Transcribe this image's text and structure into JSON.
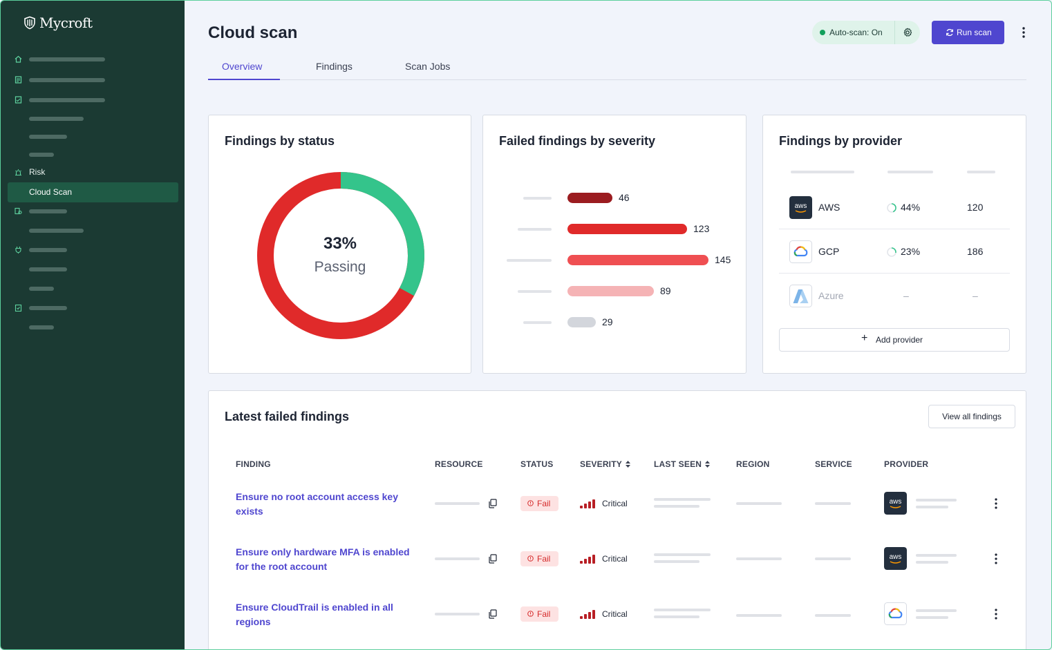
{
  "app": {
    "brand": "Mycroft",
    "page_title": "Cloud scan"
  },
  "sidebar": {
    "risk_label": "Risk",
    "active_item": "Cloud Scan"
  },
  "header": {
    "autoscan_label": "Auto-scan: On",
    "run_scan_label": "Run scan"
  },
  "tabs": [
    "Overview",
    "Findings",
    "Scan Jobs"
  ],
  "active_tab": "Overview",
  "status_card": {
    "title": "Findings by status",
    "passing_percent": 33,
    "percent_label": "33%",
    "caption": "Passing",
    "colors": {
      "pass": "#34c48b",
      "fail": "#e02a2a"
    }
  },
  "severity_card": {
    "title": "Failed findings by severity",
    "values": [
      "46",
      "123",
      "145",
      "89",
      "29"
    ],
    "colors": [
      "#9b1c20",
      "#e02a2a",
      "#ef4f52",
      "#f5b3b5",
      "#d3d6dc"
    ]
  },
  "provider_card": {
    "title": "Findings by provider",
    "rows": [
      {
        "name": "AWS",
        "percent": "44%",
        "count": "120",
        "icon": "aws-logo"
      },
      {
        "name": "GCP",
        "percent": "23%",
        "count": "186",
        "icon": "gcp-logo"
      },
      {
        "name": "Azure",
        "percent": "–",
        "count": "–",
        "icon": "azure-logo"
      }
    ],
    "add_label": "Add provider"
  },
  "findings_table": {
    "title": "Latest failed findings",
    "view_all_label": "View all findings",
    "columns": [
      "FINDING",
      "RESOURCE",
      "STATUS",
      "SEVERITY",
      "LAST SEEN",
      "REGION",
      "SERVICE",
      "PROVIDER"
    ],
    "rows": [
      {
        "finding": "Ensure no root account access key exists",
        "status": "Fail",
        "severity": "Critical",
        "provider_icon": "aws-logo"
      },
      {
        "finding": "Ensure only hardware MFA is enabled for the root account",
        "status": "Fail",
        "severity": "Critical",
        "provider_icon": "aws-logo"
      },
      {
        "finding": "Ensure CloudTrail is enabled in all regions",
        "status": "Fail",
        "severity": "Critical",
        "provider_icon": "gcp-logo"
      }
    ]
  },
  "colors": {
    "accent": "#4f46cf",
    "sidebar_bg": "#1b3a33",
    "sidebar_active": "#1f5a45"
  }
}
